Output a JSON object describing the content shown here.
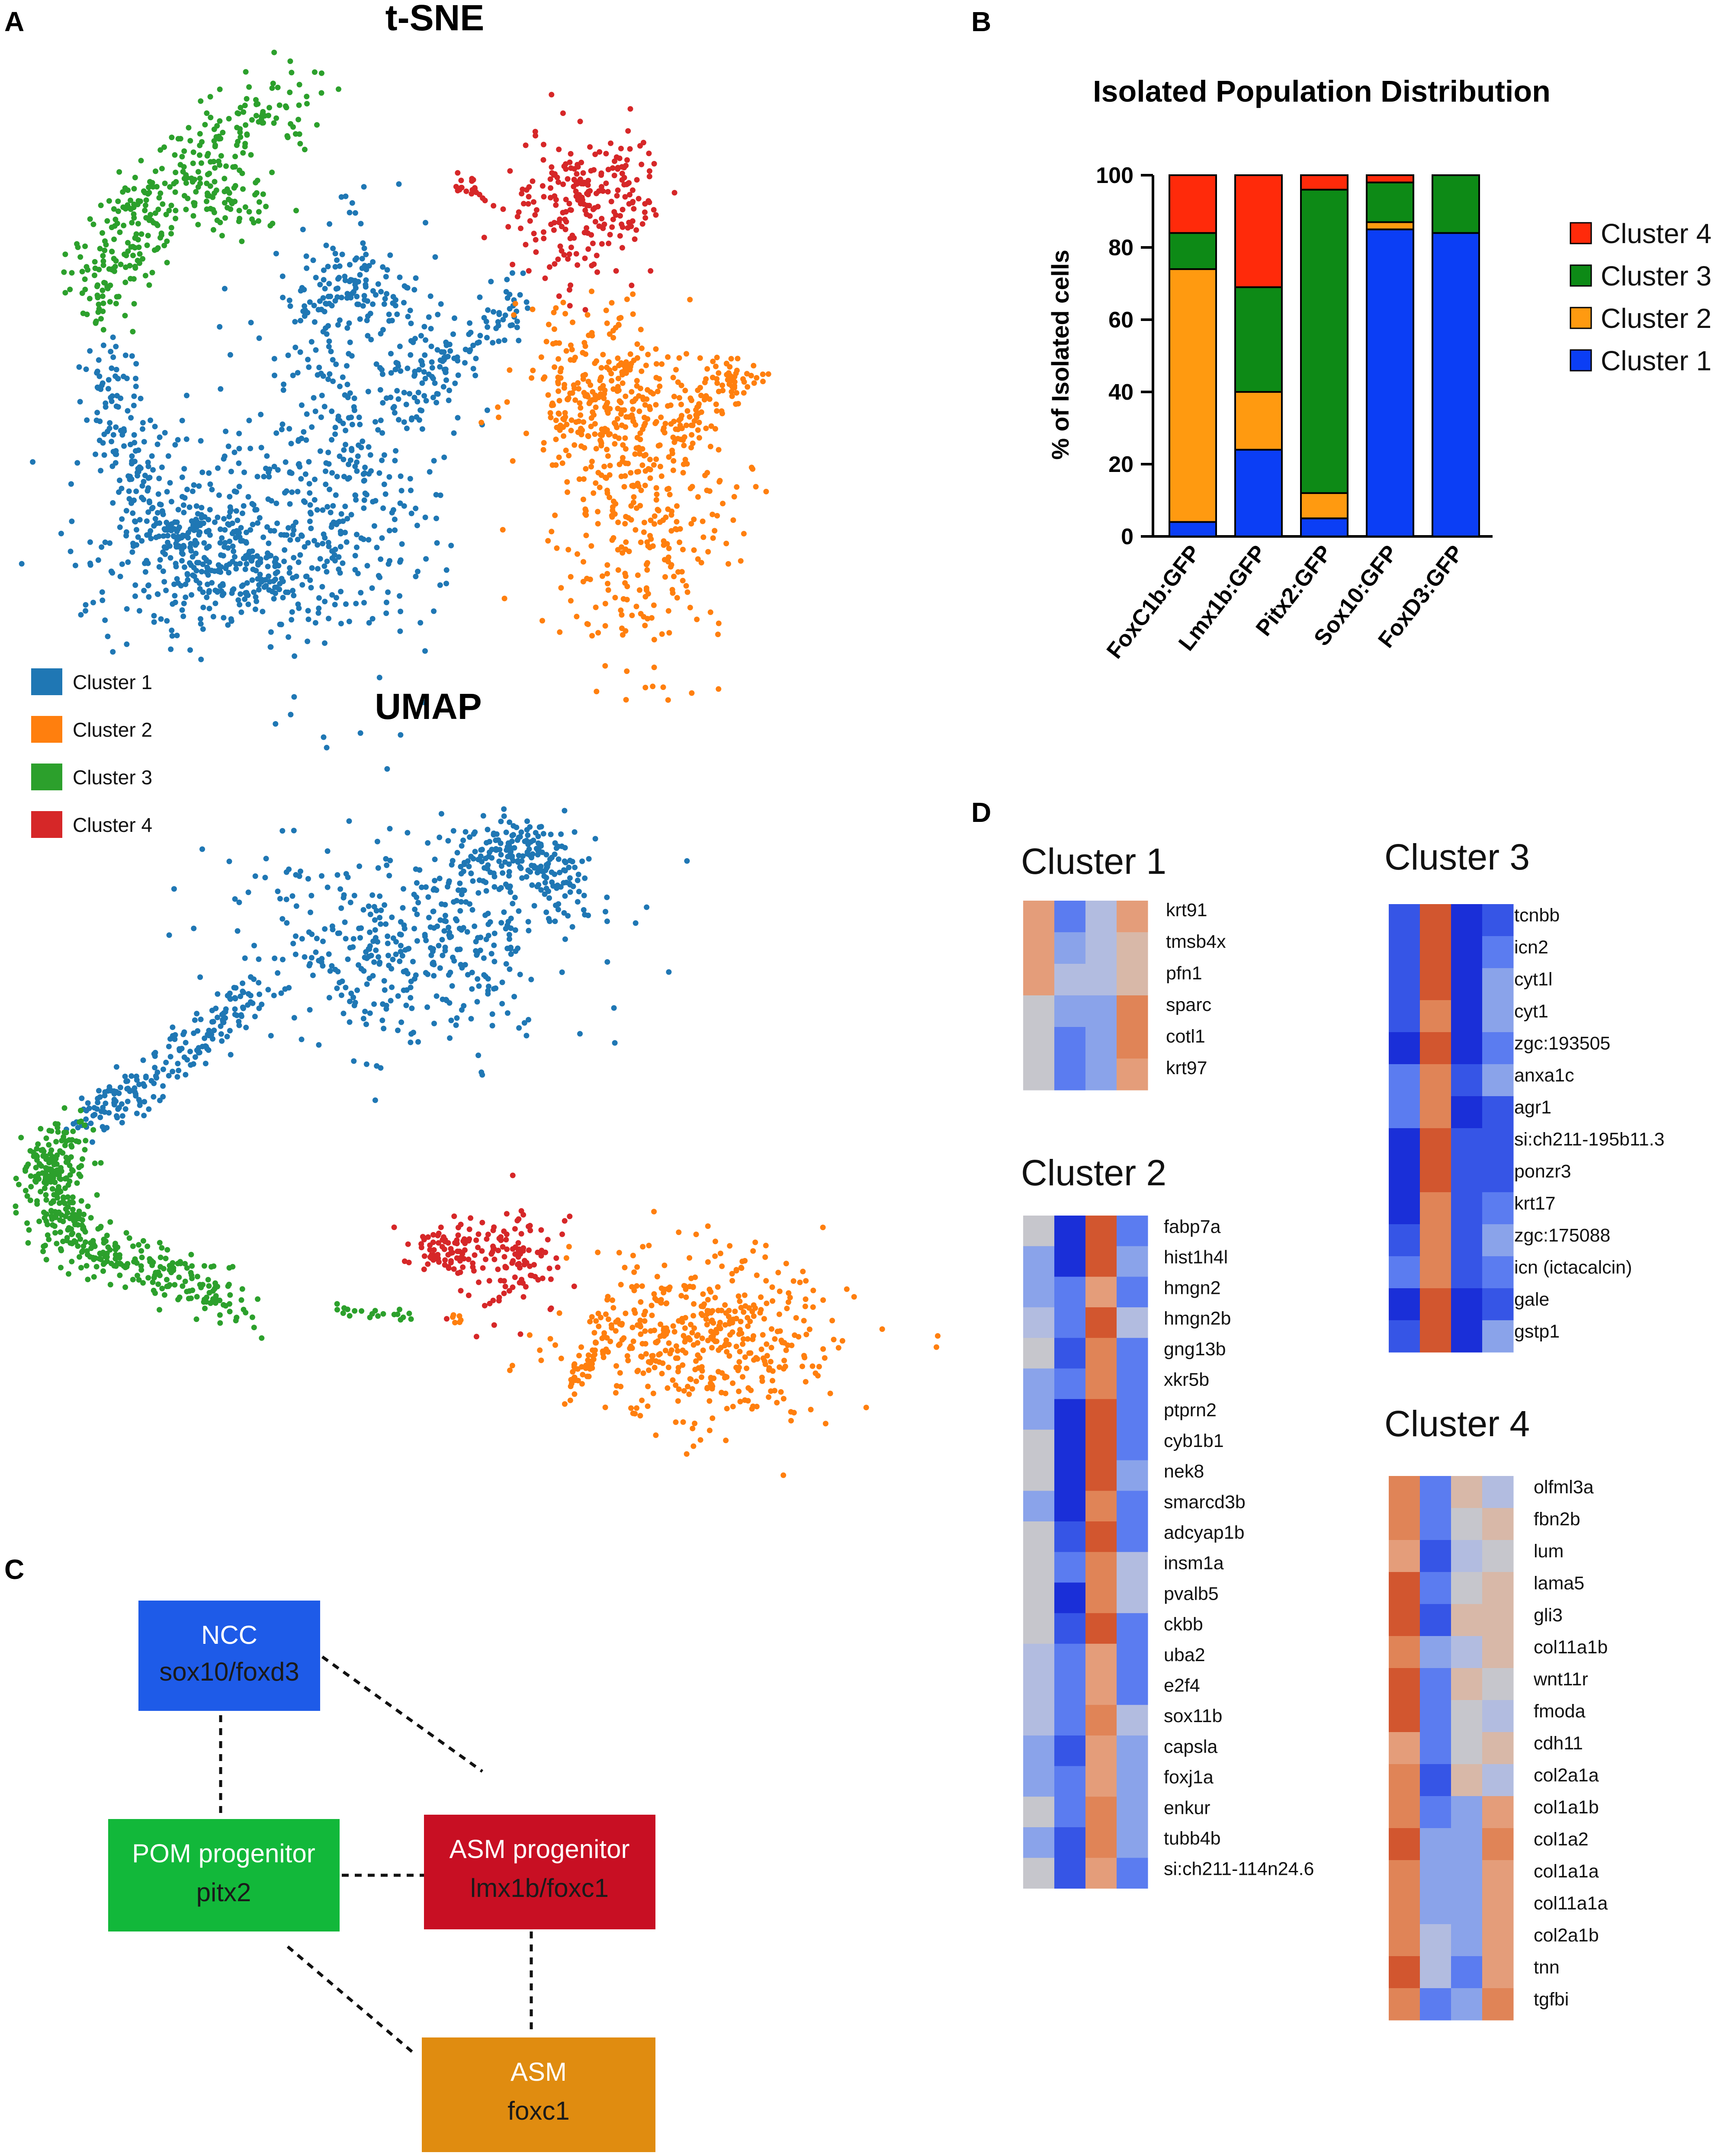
{
  "panels": {
    "a": "A",
    "b": "B",
    "c": "C",
    "d": "D"
  },
  "panel_a": {
    "tsne_title": "t-SNE",
    "umap_title": "UMAP",
    "legend": [
      {
        "label": "Cluster 1",
        "color": "#1f77b4"
      },
      {
        "label": "Cluster 2",
        "color": "#ff7f0e"
      },
      {
        "label": "Cluster 3",
        "color": "#2ca02c"
      },
      {
        "label": "Cluster 4",
        "color": "#d62728"
      }
    ]
  },
  "chart_data": {
    "type": "bar",
    "stacked": true,
    "title": "Isolated Population Distribution",
    "xlabel": "",
    "ylabel": "% of Isolated cells",
    "ylim": [
      0,
      100
    ],
    "yticks": [
      "0",
      "20",
      "40",
      "60",
      "80",
      "100"
    ],
    "categories": [
      "FoxC1b:GFP",
      "Lmx1b:GFP",
      "Pitx2:GFP",
      "Sox10:GFP",
      "FoxD3:GFP"
    ],
    "series": [
      {
        "name": "Cluster 1",
        "color": "#0b3ef5",
        "values": [
          4,
          24,
          5,
          85,
          84
        ]
      },
      {
        "name": "Cluster 2",
        "color": "#ff9a10",
        "values": [
          70,
          16,
          7,
          2,
          0
        ]
      },
      {
        "name": "Cluster 3",
        "color": "#0d8a16",
        "values": [
          10,
          29,
          84,
          11,
          16
        ]
      },
      {
        "name": "Cluster 4",
        "color": "#ff2a0a",
        "values": [
          16,
          31,
          4,
          2,
          0
        ]
      }
    ],
    "legend_order": [
      "Cluster 4",
      "Cluster 3",
      "Cluster 2",
      "Cluster 1"
    ]
  },
  "panel_c": {
    "boxes": [
      {
        "id": "ncc",
        "title": "NCC",
        "sub": "sox10/foxd3",
        "color": "#1e5be8"
      },
      {
        "id": "pom",
        "title": "POM progenitor",
        "sub": "pitx2",
        "color": "#12b83a"
      },
      {
        "id": "asmp",
        "title": "ASM progenitor",
        "sub": "lmx1b/foxc1",
        "color": "#c80f23"
      },
      {
        "id": "asm",
        "title": "ASM",
        "sub": "foxc1",
        "color": "#e08c10"
      }
    ]
  },
  "panel_d": {
    "heatmaps": [
      {
        "title": "Cluster 1",
        "genes": [
          "krt91",
          "tmsb4x",
          "pfn1",
          "sparc",
          "cotl1",
          "krt97"
        ]
      },
      {
        "title": "Cluster 2",
        "genes": [
          "fabp7a",
          "hist1h4l",
          "hmgn2",
          "hmgn2b",
          "gng13b",
          "xkr5b",
          "ptprn2",
          "cyb1b1",
          "nek8",
          "smarcd3b",
          "adcyap1b",
          "insm1a",
          "pvalb5",
          "ckbb",
          "uba2",
          "e2f4",
          "sox11b",
          "capsla",
          "foxj1a",
          "enkur",
          "tubb4b",
          "si:ch211-114n24.6"
        ]
      },
      {
        "title": "Cluster 3",
        "genes": [
          "tcnbb",
          "icn2",
          "cyt1l",
          "cyt1",
          "zgc:193505",
          "anxa1c",
          "agr1",
          "si:ch211-195b11.3",
          "ponzr3",
          "krt17",
          "zgc:175088",
          "icn (ictacalcin)",
          "gale",
          "gstp1"
        ]
      },
      {
        "title": "Cluster 4",
        "genes": [
          "olfml3a",
          "fbn2b",
          "lum",
          "lama5",
          "gli3",
          "col11a1b",
          "wnt11r",
          "fmoda",
          "cdh11",
          "col2a1a",
          "col1a1b",
          "col1a2",
          "col1a1a",
          "col11a1a",
          "col2a1b",
          "tnn",
          "tgfbi"
        ]
      }
    ]
  }
}
